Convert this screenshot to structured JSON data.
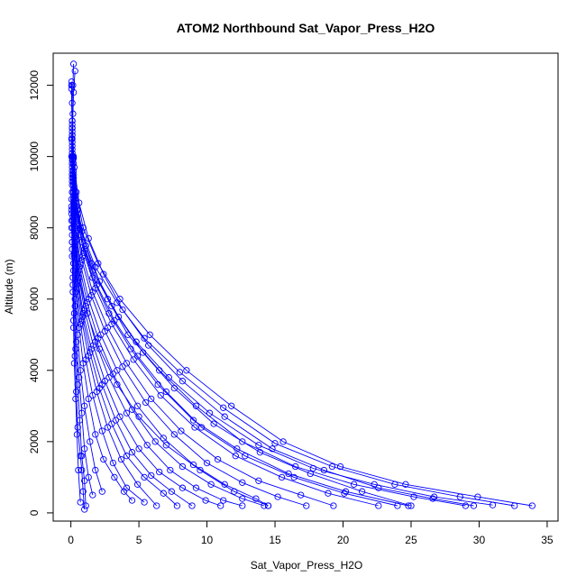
{
  "chart_data": {
    "type": "line",
    "title": "ATOM2 Northbound Sat_Vapor_Press_H2O",
    "xlabel": "Sat_Vapor_Press_H2O",
    "ylabel": "Altitude (m)",
    "xlim": [
      -1.3,
      35.8
    ],
    "ylim": [
      -230,
      12900
    ],
    "xticks": [
      0,
      5,
      10,
      15,
      20,
      25,
      30,
      35
    ],
    "yticks": [
      0,
      2000,
      4000,
      6000,
      8000,
      10000,
      12000
    ],
    "grid": false,
    "legend": "none",
    "marker": "open-circle",
    "color": "#0000ff",
    "series": [
      {
        "x": [
          0.05,
          0.1,
          0.2,
          0.4,
          0.9,
          2.0,
          3.6,
          5.8,
          8.5,
          11.8,
          15.6,
          19.8,
          24.6,
          29.9,
          33.9
        ],
        "y": [
          12000,
          11000,
          10000,
          9000,
          8000,
          7000,
          6000,
          5000,
          4000,
          3000,
          2000,
          1300,
          800,
          450,
          200
        ]
      },
      {
        "x": [
          0.05,
          0.1,
          0.2,
          0.35,
          0.8,
          1.8,
          3.4,
          5.4,
          8.0,
          11.2,
          15.0,
          19.2,
          23.8,
          28.6,
          32.6
        ],
        "y": [
          11900,
          10900,
          9950,
          8900,
          7900,
          6900,
          5900,
          4900,
          3950,
          2950,
          1950,
          1300,
          800,
          450,
          200
        ]
      },
      {
        "x": [
          0.05,
          0.1,
          0.2,
          0.3,
          0.7,
          1.6,
          3.0,
          4.8,
          7.2,
          10.2,
          13.8,
          17.8,
          22.3,
          26.7,
          31.0
        ],
        "y": [
          12000,
          10800,
          9800,
          8800,
          7800,
          6800,
          5800,
          4800,
          3800,
          2800,
          1900,
          1250,
          800,
          450,
          220
        ]
      },
      {
        "x": [
          0.1,
          0.15,
          0.3,
          0.7,
          1.5,
          2.7,
          4.2,
          6.5,
          9.2,
          12.6,
          16.5,
          20.8,
          25.2,
          29.0
        ],
        "y": [
          10800,
          9900,
          9000,
          8000,
          7000,
          6000,
          5000,
          4000,
          3000,
          2000,
          1300,
          800,
          450,
          200
        ]
      },
      {
        "x": [
          0.05,
          0.1,
          0.25,
          0.6,
          1.3,
          2.4,
          3.8,
          5.7,
          8.2,
          11.3,
          14.8,
          18.6,
          22.6,
          26.6,
          29.6
        ],
        "y": [
          12100,
          10700,
          9700,
          8700,
          7700,
          6700,
          5700,
          4700,
          3700,
          2700,
          1800,
          1200,
          700,
          400,
          200
        ]
      },
      {
        "x": [
          0.1,
          0.2,
          0.5,
          1.1,
          2.1,
          3.5,
          5.3,
          7.6,
          10.5,
          13.9,
          17.6,
          21.4,
          25.0
        ],
        "y": [
          10500,
          9500,
          8500,
          7500,
          6500,
          5500,
          4500,
          3500,
          2500,
          1700,
          1100,
          600,
          200
        ]
      },
      {
        "x": [
          0.1,
          0.2,
          0.5,
          1.0,
          1.9,
          3.2,
          4.9,
          7.0,
          9.6,
          12.8,
          16.4,
          20.1,
          24.0
        ],
        "y": [
          10400,
          9400,
          8400,
          7400,
          6400,
          5400,
          4400,
          3400,
          2400,
          1600,
          1000,
          550,
          200
        ]
      },
      {
        "x": [
          0.1,
          0.2,
          0.45,
          0.95,
          1.8,
          3.0,
          4.6,
          6.6,
          9.1,
          12.1,
          15.5,
          18.9,
          22.6
        ],
        "y": [
          10300,
          9300,
          8300,
          7300,
          6300,
          5300,
          4300,
          3300,
          2400,
          1600,
          1000,
          550,
          200
        ]
      },
      {
        "x": [
          0.1,
          0.2,
          0.4,
          0.85,
          1.6,
          2.7,
          4.1,
          5.9,
          8.1,
          10.8,
          13.8,
          16.9,
          19.3
        ],
        "y": [
          10200,
          9200,
          8200,
          7200,
          6200,
          5200,
          4200,
          3200,
          2300,
          1500,
          900,
          500,
          200
        ]
      },
      {
        "x": [
          0.1,
          0.2,
          0.4,
          0.8,
          1.5,
          2.5,
          3.8,
          5.5,
          7.6,
          10.0,
          12.6,
          15.2,
          17.3
        ],
        "y": [
          10100,
          9100,
          8100,
          7100,
          6100,
          5100,
          4100,
          3100,
          2200,
          1400,
          850,
          450,
          200
        ]
      },
      {
        "x": [
          0.1,
          0.2,
          0.35,
          0.7,
          1.3,
          2.2,
          3.4,
          4.9,
          6.8,
          9.0,
          11.3,
          13.6,
          14.5
        ],
        "y": [
          10000,
          9000,
          8000,
          7000,
          6000,
          5000,
          4000,
          3000,
          2100,
          1350,
          800,
          400,
          200
        ]
      },
      {
        "x": [
          0.1,
          0.2,
          0.35,
          0.65,
          1.2,
          2.0,
          3.1,
          4.5,
          6.2,
          8.2,
          10.3,
          12.6,
          14.2
        ],
        "y": [
          9900,
          8900,
          7900,
          6900,
          5900,
          4900,
          3900,
          2900,
          2000,
          1300,
          800,
          400,
          200
        ]
      },
      {
        "x": [
          0.1,
          0.2,
          0.3,
          0.6,
          1.1,
          1.8,
          2.8,
          4.1,
          5.6,
          7.3,
          9.2,
          11.2,
          12.6
        ],
        "y": [
          9800,
          8800,
          7800,
          6800,
          5800,
          4800,
          3800,
          2800,
          1900,
          1200,
          700,
          350,
          200
        ]
      },
      {
        "x": [
          0.1,
          0.2,
          0.3,
          0.55,
          1.0,
          1.65,
          2.5,
          3.6,
          5.0,
          6.5,
          8.2,
          9.9,
          11.0
        ],
        "y": [
          9700,
          8700,
          7700,
          6700,
          5700,
          4700,
          3700,
          2700,
          1800,
          1150,
          700,
          350,
          200
        ]
      },
      {
        "x": [
          0.1,
          0.2,
          0.3,
          0.5,
          0.9,
          1.5,
          2.3,
          3.3,
          4.5,
          5.9,
          7.4,
          8.9
        ],
        "y": [
          9600,
          8600,
          7600,
          6600,
          5600,
          4600,
          3600,
          2600,
          1700,
          1050,
          600,
          200
        ]
      },
      {
        "x": [
          0.1,
          0.2,
          0.3,
          0.5,
          0.85,
          1.4,
          2.1,
          3.0,
          4.1,
          5.4,
          6.8,
          7.8
        ],
        "y": [
          9500,
          8500,
          7500,
          6500,
          5500,
          4500,
          3500,
          2500,
          1600,
          1000,
          550,
          200
        ]
      },
      {
        "x": [
          0.1,
          0.2,
          0.3,
          0.45,
          0.8,
          1.3,
          1.9,
          2.7,
          3.7,
          4.9,
          6.3
        ],
        "y": [
          9400,
          8400,
          7400,
          6400,
          5400,
          4400,
          3400,
          2400,
          1500,
          800,
          200
        ]
      },
      {
        "x": [
          0.1,
          0.15,
          0.25,
          0.4,
          0.7,
          1.1,
          1.6,
          2.3,
          3.1,
          4.1,
          5.4
        ],
        "y": [
          9300,
          8300,
          7300,
          6300,
          5300,
          4300,
          3300,
          2300,
          1400,
          700,
          300
        ]
      },
      {
        "x": [
          0.1,
          0.15,
          0.25,
          0.35,
          0.6,
          0.9,
          1.3,
          1.8,
          2.4,
          3.2,
          3.9,
          4.5
        ],
        "y": [
          9200,
          8200,
          7200,
          6200,
          5200,
          4200,
          3200,
          2200,
          1500,
          1000,
          600,
          350
        ]
      },
      {
        "x": [
          0.1,
          0.15,
          0.2,
          0.3,
          0.5,
          0.7,
          1.0,
          1.4,
          1.8,
          2.3
        ],
        "y": [
          9000,
          8000,
          7000,
          6000,
          5000,
          4000,
          3000,
          2000,
          1200,
          600
        ]
      },
      {
        "x": [
          0.05,
          0.1,
          0.2,
          0.3,
          0.4,
          0.6,
          0.8,
          1.0,
          1.3,
          1.6
        ],
        "y": [
          8800,
          7800,
          6800,
          5800,
          4800,
          3800,
          2800,
          1800,
          1000,
          500
        ]
      },
      {
        "x": [
          0.05,
          0.1,
          0.15,
          0.25,
          0.35,
          0.5,
          0.65,
          0.8,
          1.0,
          1.1
        ],
        "y": [
          8600,
          7600,
          6600,
          5600,
          4600,
          3600,
          2600,
          1600,
          900,
          200
        ]
      },
      {
        "x": [
          0.05,
          0.1,
          0.15,
          0.2,
          0.3,
          0.4,
          0.5,
          0.7,
          0.8,
          0.9,
          1.0
        ],
        "y": [
          8400,
          7400,
          6400,
          5400,
          4400,
          3400,
          2400,
          1600,
          1200,
          600,
          100
        ]
      },
      {
        "x": [
          0.05,
          0.1,
          0.15,
          0.2,
          0.25,
          0.35,
          0.45,
          0.55,
          0.7
        ],
        "y": [
          8200,
          7200,
          6200,
          5200,
          4200,
          3200,
          2200,
          1200,
          300
        ]
      },
      {
        "x": [
          0.2,
          0.15,
          0.1,
          0.1,
          0.05,
          0.05,
          0.1,
          0.1,
          0.05,
          0.05
        ],
        "y": [
          12600,
          12000,
          11500,
          11000,
          10500,
          10000,
          9500,
          9000,
          8500,
          8000
        ]
      },
      {
        "x": [
          0.3,
          0.2,
          0.15,
          0.1,
          0.15,
          0.1,
          0.2,
          0.15,
          0.1
        ],
        "y": [
          12400,
          11800,
          11200,
          10600,
          10000,
          9400,
          8800,
          8200,
          7600
        ]
      },
      {
        "x": [
          0.1,
          0.2,
          0.3,
          0.6,
          1.2,
          2.1,
          3.4,
          5.0,
          7.0,
          9.5,
          12.0,
          14.5
        ],
        "y": [
          9800,
          8600,
          7600,
          6600,
          5600,
          4600,
          3600,
          2700,
          1900,
          1200,
          600,
          200
        ]
      },
      {
        "x": [
          0.1,
          0.2,
          0.4,
          0.8,
          1.6,
          2.8,
          4.4,
          6.4,
          9.0,
          12.2,
          16.0,
          20.2,
          24.8
        ],
        "y": [
          10600,
          9600,
          8600,
          7600,
          6600,
          5600,
          4600,
          3600,
          2600,
          1800,
          1100,
          600,
          200
        ]
      }
    ]
  }
}
